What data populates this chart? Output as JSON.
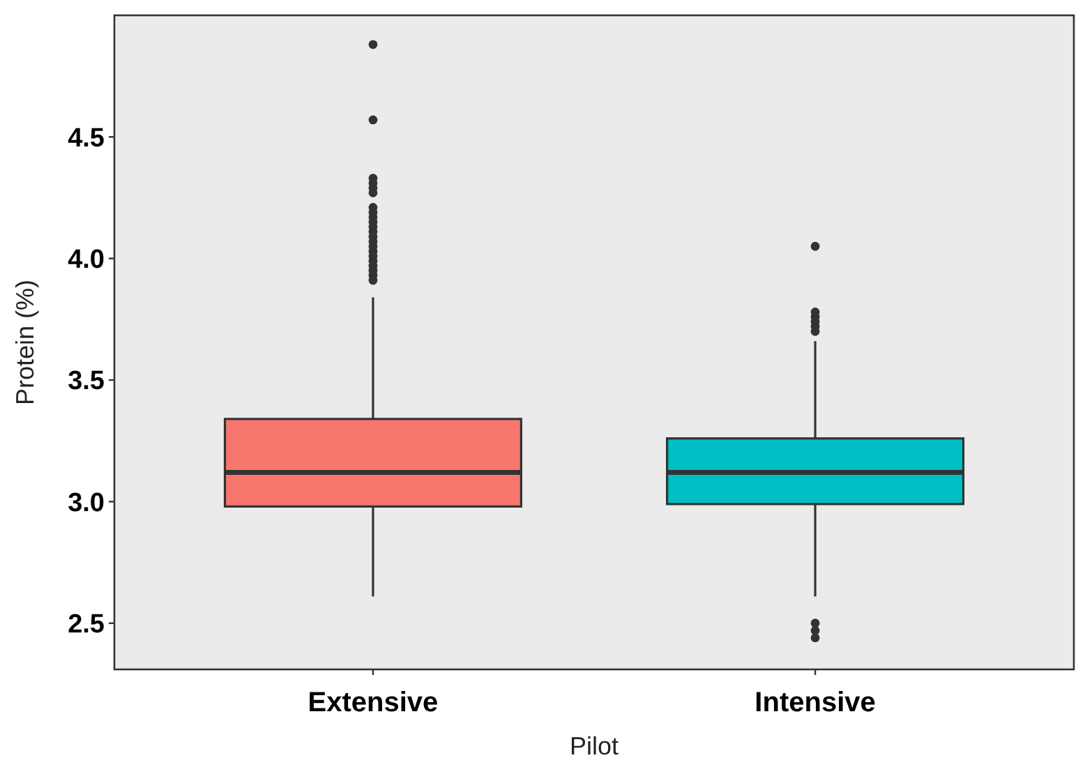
{
  "chart_data": {
    "type": "box",
    "xlabel": "Pilot",
    "ylabel": "Protein (%)",
    "categories": [
      "Extensive",
      "Intensive"
    ],
    "colors": [
      "#f8766d",
      "#00bfc4"
    ],
    "boxes": [
      {
        "low": 2.61,
        "q1": 2.98,
        "median": 3.12,
        "q3": 3.34,
        "high": 3.84,
        "outliers": [
          4.88,
          4.57,
          4.33,
          4.31,
          4.29,
          4.27,
          4.21,
          4.19,
          4.17,
          4.15,
          4.13,
          4.11,
          4.09,
          4.07,
          4.05,
          4.03,
          4.01,
          3.99,
          3.97,
          3.95,
          3.93,
          3.91
        ]
      },
      {
        "low": 2.61,
        "q1": 2.99,
        "median": 3.12,
        "q3": 3.26,
        "high": 3.66,
        "outliers": [
          4.05,
          3.78,
          3.76,
          3.74,
          3.72,
          3.7,
          2.5,
          2.47,
          2.44
        ]
      }
    ],
    "ylim": [
      2.31,
      5.0
    ],
    "yticks": [
      2.5,
      {
        "value": 3,
        "label": "3.0"
      },
      3.5,
      {
        "value": 4,
        "label": "4.0"
      },
      4.5
    ],
    "grid": false
  }
}
